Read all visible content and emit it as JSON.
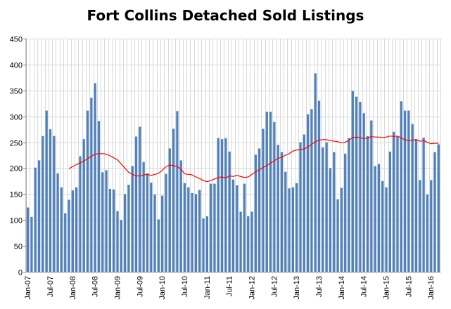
{
  "chart_data": {
    "type": "bar",
    "title": "Fort Collins Detached Sold Listings",
    "xlabel": "",
    "ylabel": "",
    "ylim": [
      0,
      450
    ],
    "yticks": [
      0,
      50,
      100,
      150,
      200,
      250,
      300,
      350,
      400,
      450
    ],
    "grid": true,
    "legend": "none",
    "x_tick_labels": [
      "Jan-07",
      "Jul-07",
      "Jan-08",
      "Jul-08",
      "Jan-09",
      "Jul-09",
      "Jan-10",
      "Jul-10",
      "Jan-11",
      "Jul-11",
      "Jan-12",
      "Jul-12",
      "Jan-13",
      "Jul-13",
      "Jan-14",
      "Jul-14",
      "Jan-15",
      "Jul-15",
      "Jan-16"
    ],
    "colors": {
      "bars": "#4F81BD",
      "trend": "#FF0000",
      "grid": "#D9D9D9",
      "axis": "#868686"
    },
    "series": [
      {
        "type": "bar",
        "values": [
          124,
          106,
          201,
          215,
          262,
          311,
          275,
          262,
          190,
          163,
          113,
          139,
          157,
          163,
          223,
          256,
          311,
          336,
          364,
          291,
          192,
          196,
          160,
          159,
          117,
          100,
          150,
          168,
          204,
          261,
          280,
          212,
          190,
          172,
          149,
          101,
          147,
          189,
          238,
          276,
          310,
          215,
          171,
          163,
          152,
          150,
          158,
          103,
          107,
          170,
          170,
          258,
          256,
          258,
          232,
          178,
          167,
          116,
          170,
          107,
          116,
          226,
          238,
          276,
          309,
          309,
          289,
          245,
          231,
          193,
          161,
          163,
          171,
          250,
          265,
          304,
          314,
          383,
          330,
          240,
          250,
          200,
          231,
          140,
          162,
          228,
          258,
          349,
          338,
          328,
          306,
          262,
          292,
          204,
          208,
          175,
          163,
          232,
          270,
          262,
          329,
          311,
          311,
          285,
          256,
          177,
          259,
          149,
          177,
          231,
          246
        ]
      },
      {
        "type": "line",
        "name": "",
        "values": [
          null,
          null,
          null,
          null,
          null,
          null,
          null,
          null,
          null,
          null,
          null,
          199,
          203,
          207,
          210,
          214,
          218,
          223,
          227,
          228,
          228,
          227,
          224,
          220,
          216,
          208,
          200,
          192,
          188,
          185,
          185,
          187,
          188,
          186,
          188,
          190,
          196,
          203,
          206,
          205,
          203,
          198,
          189,
          188,
          187,
          183,
          180,
          176,
          174,
          176,
          179,
          182,
          183,
          181,
          185,
          184,
          186,
          184,
          182,
          183,
          188,
          193,
          197,
          201,
          205,
          210,
          214,
          219,
          221,
          225,
          228,
          233,
          235,
          236,
          237,
          241,
          246,
          251,
          254,
          255,
          255,
          253,
          252,
          251,
          249,
          250,
          254,
          259,
          260,
          259,
          257,
          258,
          261,
          260,
          260,
          259,
          260,
          262,
          261,
          262,
          258,
          255,
          253,
          254,
          255,
          252,
          253,
          250,
          247,
          248,
          248
        ]
      }
    ]
  }
}
